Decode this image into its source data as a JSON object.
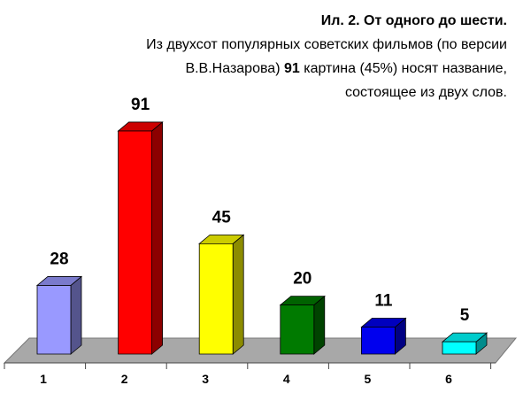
{
  "chart_data": {
    "type": "bar3d",
    "title": "Ил. 2. От одного до шести.",
    "subtitle": [
      "Из двухсот популярных советских фильмов (по версии",
      "В.В.Назарова)",
      "91",
      "картина (45%) носят название,",
      "состоящее из двух слов."
    ],
    "categories": [
      "1",
      "2",
      "3",
      "4",
      "5",
      "6"
    ],
    "values": [
      28,
      91,
      45,
      20,
      11,
      5
    ],
    "colors": [
      "#9999ff",
      "#ff0000",
      "#ffff00",
      "#007a00",
      "#0000ee",
      "#00ffff"
    ],
    "ylim": [
      0,
      100
    ]
  }
}
